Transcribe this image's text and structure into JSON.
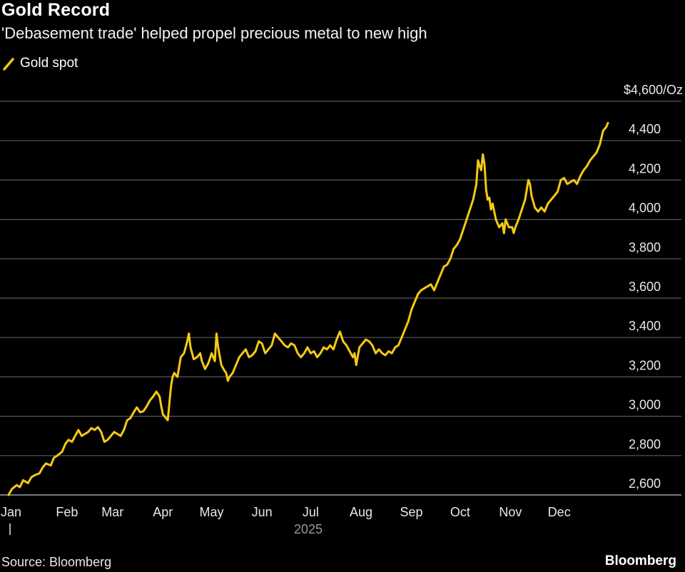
{
  "chart_data": {
    "type": "line",
    "title": "Gold Record",
    "subtitle": "'Debasement trade' helped propel precious metal to new high",
    "legend": {
      "placement": "top-left",
      "entries": [
        "Gold spot"
      ]
    },
    "y_unit_label": "$4,600/Oz",
    "ylim": [
      2580,
      4600
    ],
    "y_ticks": [
      2600,
      2800,
      3000,
      3200,
      3400,
      3600,
      3800,
      4000,
      4200,
      4400,
      4600
    ],
    "y_tick_labels": [
      "2,600",
      "2,800",
      "3,000",
      "3,200",
      "3,400",
      "3,600",
      "3,800",
      "4,000",
      "4,200",
      "4,400",
      "$4,600/Oz"
    ],
    "x_ticks": [
      "Jan",
      "Feb",
      "Mar",
      "Apr",
      "May",
      "Jun",
      "Jul",
      "Aug",
      "Sep",
      "Oct",
      "Nov",
      "Dec"
    ],
    "x_year_label": "2025",
    "grid": true,
    "series": [
      {
        "name": "Gold spot",
        "color": "#f5c915",
        "x_unit": "day of year 2025",
        "points": [
          [
            1,
            2600
          ],
          [
            3,
            2630
          ],
          [
            6,
            2650
          ],
          [
            8,
            2640
          ],
          [
            10,
            2675
          ],
          [
            13,
            2660
          ],
          [
            15,
            2690
          ],
          [
            17,
            2700
          ],
          [
            20,
            2710
          ],
          [
            22,
            2740
          ],
          [
            24,
            2760
          ],
          [
            27,
            2750
          ],
          [
            29,
            2790
          ],
          [
            31,
            2800
          ],
          [
            34,
            2820
          ],
          [
            36,
            2860
          ],
          [
            38,
            2880
          ],
          [
            40,
            2870
          ],
          [
            42,
            2900
          ],
          [
            44,
            2930
          ],
          [
            46,
            2900
          ],
          [
            48,
            2910
          ],
          [
            50,
            2920
          ],
          [
            52,
            2940
          ],
          [
            54,
            2930
          ],
          [
            56,
            2945
          ],
          [
            58,
            2920
          ],
          [
            60,
            2870
          ],
          [
            62,
            2880
          ],
          [
            64,
            2900
          ],
          [
            66,
            2920
          ],
          [
            68,
            2910
          ],
          [
            70,
            2900
          ],
          [
            72,
            2930
          ],
          [
            74,
            2980
          ],
          [
            76,
            2990
          ],
          [
            78,
            3020
          ],
          [
            80,
            3045
          ],
          [
            82,
            3020
          ],
          [
            84,
            3025
          ],
          [
            86,
            3050
          ],
          [
            88,
            3080
          ],
          [
            90,
            3100
          ],
          [
            92,
            3125
          ],
          [
            94,
            3100
          ],
          [
            95,
            3050
          ],
          [
            96,
            3010
          ],
          [
            98,
            2990
          ],
          [
            99,
            2980
          ],
          [
            101,
            3150
          ],
          [
            102,
            3200
          ],
          [
            103,
            3220
          ],
          [
            105,
            3200
          ],
          [
            107,
            3300
          ],
          [
            109,
            3320
          ],
          [
            111,
            3380
          ],
          [
            112,
            3420
          ],
          [
            113,
            3350
          ],
          [
            115,
            3290
          ],
          [
            117,
            3300
          ],
          [
            119,
            3320
          ],
          [
            120,
            3280
          ],
          [
            122,
            3240
          ],
          [
            124,
            3270
          ],
          [
            126,
            3320
          ],
          [
            128,
            3280
          ],
          [
            129,
            3420
          ],
          [
            130,
            3350
          ],
          [
            132,
            3260
          ],
          [
            134,
            3230
          ],
          [
            135,
            3220
          ],
          [
            136,
            3180
          ],
          [
            137,
            3200
          ],
          [
            139,
            3220
          ],
          [
            141,
            3260
          ],
          [
            143,
            3300
          ],
          [
            145,
            3320
          ],
          [
            147,
            3340
          ],
          [
            149,
            3300
          ],
          [
            151,
            3310
          ],
          [
            153,
            3330
          ],
          [
            155,
            3380
          ],
          [
            157,
            3370
          ],
          [
            159,
            3320
          ],
          [
            161,
            3340
          ],
          [
            163,
            3360
          ],
          [
            165,
            3420
          ],
          [
            167,
            3400
          ],
          [
            169,
            3380
          ],
          [
            171,
            3360
          ],
          [
            173,
            3350
          ],
          [
            175,
            3370
          ],
          [
            177,
            3360
          ],
          [
            179,
            3320
          ],
          [
            181,
            3300
          ],
          [
            183,
            3320
          ],
          [
            185,
            3350
          ],
          [
            187,
            3320
          ],
          [
            189,
            3330
          ],
          [
            191,
            3300
          ],
          [
            193,
            3320
          ],
          [
            195,
            3350
          ],
          [
            197,
            3340
          ],
          [
            199,
            3360
          ],
          [
            201,
            3340
          ],
          [
            203,
            3390
          ],
          [
            205,
            3430
          ],
          [
            207,
            3380
          ],
          [
            209,
            3360
          ],
          [
            211,
            3330
          ],
          [
            213,
            3300
          ],
          [
            214,
            3320
          ],
          [
            215,
            3260
          ],
          [
            217,
            3350
          ],
          [
            219,
            3370
          ],
          [
            221,
            3390
          ],
          [
            223,
            3380
          ],
          [
            225,
            3360
          ],
          [
            227,
            3320
          ],
          [
            229,
            3340
          ],
          [
            231,
            3320
          ],
          [
            233,
            3310
          ],
          [
            235,
            3330
          ],
          [
            237,
            3320
          ],
          [
            239,
            3350
          ],
          [
            241,
            3360
          ],
          [
            243,
            3400
          ],
          [
            245,
            3440
          ],
          [
            247,
            3480
          ],
          [
            249,
            3540
          ],
          [
            251,
            3580
          ],
          [
            253,
            3620
          ],
          [
            255,
            3640
          ],
          [
            257,
            3650
          ],
          [
            259,
            3660
          ],
          [
            261,
            3670
          ],
          [
            263,
            3640
          ],
          [
            265,
            3680
          ],
          [
            267,
            3720
          ],
          [
            269,
            3760
          ],
          [
            271,
            3770
          ],
          [
            273,
            3800
          ],
          [
            275,
            3850
          ],
          [
            277,
            3870
          ],
          [
            279,
            3900
          ],
          [
            281,
            3950
          ],
          [
            283,
            4000
          ],
          [
            285,
            4050
          ],
          [
            287,
            4100
          ],
          [
            289,
            4180
          ],
          [
            290,
            4300
          ],
          [
            291,
            4270
          ],
          [
            292,
            4250
          ],
          [
            293,
            4330
          ],
          [
            294,
            4280
          ],
          [
            295,
            4150
          ],
          [
            296,
            4100
          ],
          [
            297,
            4110
          ],
          [
            298,
            4050
          ],
          [
            299,
            4080
          ],
          [
            301,
            4000
          ],
          [
            303,
            3960
          ],
          [
            305,
            3980
          ],
          [
            306,
            3930
          ],
          [
            307,
            4000
          ],
          [
            309,
            3960
          ],
          [
            311,
            3960
          ],
          [
            312,
            3930
          ],
          [
            313,
            3960
          ],
          [
            315,
            4000
          ],
          [
            317,
            4050
          ],
          [
            319,
            4100
          ],
          [
            321,
            4200
          ],
          [
            322,
            4180
          ],
          [
            323,
            4120
          ],
          [
            325,
            4060
          ],
          [
            327,
            4040
          ],
          [
            329,
            4060
          ],
          [
            331,
            4040
          ],
          [
            333,
            4080
          ],
          [
            335,
            4100
          ],
          [
            337,
            4120
          ],
          [
            339,
            4140
          ],
          [
            341,
            4200
          ],
          [
            343,
            4210
          ],
          [
            345,
            4180
          ],
          [
            347,
            4190
          ],
          [
            349,
            4200
          ],
          [
            351,
            4180
          ],
          [
            353,
            4220
          ],
          [
            355,
            4250
          ],
          [
            357,
            4270
          ],
          [
            359,
            4300
          ],
          [
            361,
            4320
          ],
          [
            363,
            4340
          ],
          [
            365,
            4380
          ],
          [
            367,
            4450
          ],
          [
            369,
            4470
          ],
          [
            370,
            4490
          ]
        ]
      }
    ],
    "source": "Source: Bloomberg",
    "brand": "Bloomberg"
  }
}
